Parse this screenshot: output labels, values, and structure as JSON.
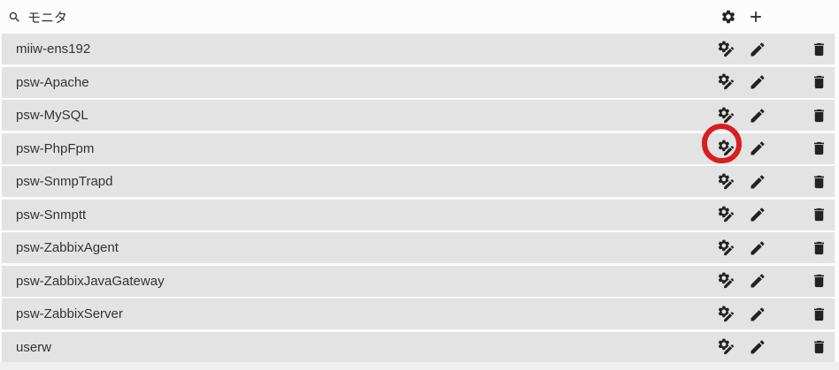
{
  "header": {
    "title": "モニタ",
    "search_icon": "search-icon",
    "toolbar_icons": [
      {
        "name": "gear-icon",
        "action": "settings"
      },
      {
        "name": "plus-icon",
        "action": "add"
      }
    ]
  },
  "monitors": [
    "miiw-ens192",
    "psw-Apache",
    "psw-MySQL",
    "psw-PhpFpm",
    "psw-SnmpTrapd",
    "psw-Snmptt",
    "psw-ZabbixAgent",
    "psw-ZabbixJavaGateway",
    "psw-ZabbixServer",
    "userw"
  ],
  "row_actions": [
    {
      "name": "gear-pencil-icon",
      "action": "configure"
    },
    {
      "name": "pencil-icon",
      "action": "edit"
    },
    {
      "name": "trash-icon",
      "action": "delete"
    }
  ],
  "annotation": {
    "type": "red-circle",
    "highlighted_monitor": "psw-PhpFpm",
    "row_index": 3,
    "target_action": "configure",
    "color": "#d81e1e"
  },
  "colors": {
    "row_background": "#e3e3e3",
    "text": "#333333",
    "icon": "#222222",
    "annotation_red": "#d81e1e"
  }
}
